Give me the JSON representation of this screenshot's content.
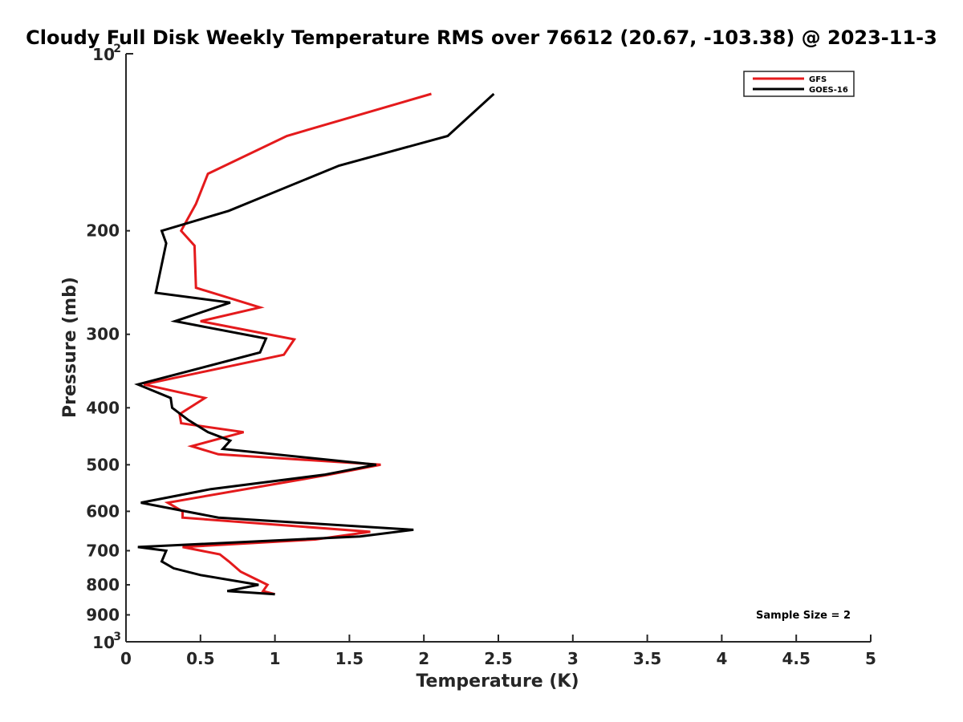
{
  "chart_data": {
    "type": "line",
    "title": "Cloudy Full Disk Weekly Temperature RMS over 76612 (20.67, -103.38) @ 2023-11-3",
    "xlabel": "Temperature (K)",
    "ylabel": "Pressure (mb)",
    "xlim": [
      0,
      5
    ],
    "ylim": [
      100,
      1000
    ],
    "y_scale": "log",
    "y_reversed": true,
    "grid": false,
    "legend_position": "top-right",
    "x_ticks": [
      "0",
      "0.5",
      "1",
      "1.5",
      "2",
      "2.5",
      "3",
      "3.5",
      "4",
      "4.5",
      "5"
    ],
    "y_ticks": [
      {
        "value": 100,
        "base": "10",
        "exp": "2"
      },
      {
        "value": 200,
        "label": "200"
      },
      {
        "value": 300,
        "label": "300"
      },
      {
        "value": 400,
        "label": "400"
      },
      {
        "value": 500,
        "label": "500"
      },
      {
        "value": 600,
        "label": "600"
      },
      {
        "value": 700,
        "label": "700"
      },
      {
        "value": 800,
        "label": "800"
      },
      {
        "value": 900,
        "label": "900"
      },
      {
        "value": 1000,
        "base": "10",
        "exp": "3"
      }
    ],
    "series": [
      {
        "name": "GFS",
        "color": "#e41a1c",
        "points": [
          [
            2.05,
            117
          ],
          [
            1.08,
            138
          ],
          [
            0.55,
            160
          ],
          [
            0.47,
            180
          ],
          [
            0.37,
            200
          ],
          [
            0.46,
            212
          ],
          [
            0.47,
            250
          ],
          [
            0.9,
            270
          ],
          [
            0.5,
            285
          ],
          [
            1.13,
            306
          ],
          [
            1.06,
            325
          ],
          [
            0.12,
            365
          ],
          [
            0.53,
            385
          ],
          [
            0.36,
            410
          ],
          [
            0.37,
            425
          ],
          [
            0.79,
            440
          ],
          [
            0.44,
            465
          ],
          [
            0.62,
            480
          ],
          [
            1.71,
            500
          ],
          [
            1.36,
            520
          ],
          [
            0.28,
            580
          ],
          [
            0.38,
            600
          ],
          [
            0.38,
            615
          ],
          [
            1.64,
            650
          ],
          [
            1.27,
            670
          ],
          [
            0.38,
            690
          ],
          [
            0.63,
            710
          ],
          [
            0.69,
            730
          ],
          [
            0.77,
            760
          ],
          [
            0.95,
            800
          ],
          [
            0.92,
            820
          ],
          [
            1.0,
            830
          ]
        ]
      },
      {
        "name": "GOES-16",
        "color": "#000000",
        "points": [
          [
            2.47,
            117
          ],
          [
            2.16,
            138
          ],
          [
            1.43,
            155
          ],
          [
            0.69,
            185
          ],
          [
            0.24,
            200
          ],
          [
            0.27,
            210
          ],
          [
            0.2,
            255
          ],
          [
            0.7,
            265
          ],
          [
            0.33,
            285
          ],
          [
            0.94,
            305
          ],
          [
            0.9,
            322
          ],
          [
            0.08,
            365
          ],
          [
            0.3,
            385
          ],
          [
            0.31,
            400
          ],
          [
            0.42,
            420
          ],
          [
            0.55,
            440
          ],
          [
            0.7,
            455
          ],
          [
            0.65,
            470
          ],
          [
            1.68,
            500
          ],
          [
            1.33,
            520
          ],
          [
            0.57,
            550
          ],
          [
            0.1,
            580
          ],
          [
            0.4,
            600
          ],
          [
            0.62,
            615
          ],
          [
            1.93,
            645
          ],
          [
            1.57,
            662
          ],
          [
            0.08,
            690
          ],
          [
            0.27,
            700
          ],
          [
            0.24,
            730
          ],
          [
            0.32,
            750
          ],
          [
            0.5,
            770
          ],
          [
            0.89,
            800
          ],
          [
            0.68,
            820
          ],
          [
            1.0,
            830
          ]
        ]
      }
    ],
    "annotation": "Sample Size = 2"
  }
}
